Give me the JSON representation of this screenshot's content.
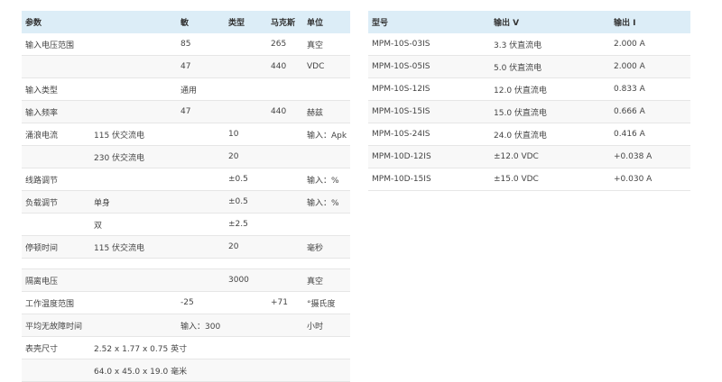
{
  "spec_table": {
    "headers": [
      "参数",
      "",
      "敏",
      "类型",
      "马克斯",
      "单位"
    ],
    "rows": [
      [
        "输入电压范围",
        "",
        "85",
        "",
        "265",
        "真空"
      ],
      [
        "",
        "",
        "47",
        "",
        "440",
        "VDC"
      ],
      [
        "输入类型",
        "",
        "通用",
        "",
        "",
        ""
      ],
      [
        "输入频率",
        "",
        "47",
        "",
        "440",
        "赫兹"
      ],
      [
        "涌浪电流",
        "115 伏交流电",
        "",
        "10",
        "",
        "输入：Apk"
      ],
      [
        "",
        "230 伏交流电",
        "",
        "20",
        "",
        ""
      ],
      [
        "线路调节",
        "",
        "",
        "±0.5",
        "",
        "输入：%"
      ],
      [
        "负载调节",
        "单身",
        "",
        "±0.5",
        "",
        "输入：%"
      ],
      [
        "",
        "双",
        "",
        "±2.5",
        "",
        ""
      ],
      [
        "停顿时间",
        "115 伏交流电",
        "",
        "20",
        "",
        "毫秒"
      ],
      [
        "",
        "",
        "",
        "",
        "",
        ""
      ],
      [
        "隔离电压",
        "",
        "",
        "3000",
        "",
        "真空"
      ],
      [
        "工作温度范围",
        "",
        "-25",
        "",
        "+71",
        "°摄氏度"
      ],
      [
        "平均无故障时间",
        "",
        "输入：300",
        "",
        "",
        "小时"
      ],
      [
        "表壳尺寸",
        "2.52 x 1.77 x 0.75 英寸",
        "",
        "",
        "",
        ""
      ],
      [
        "",
        "64.0 x 45.0 x 19.0 毫米",
        "",
        "",
        "",
        ""
      ]
    ]
  },
  "model_table": {
    "headers": [
      "型号",
      "输出 V",
      "输出 I"
    ],
    "rows": [
      [
        "MPM-10S-03IS",
        "3.3 伏直流电",
        "2.000 A"
      ],
      [
        "MPM-10S-05IS",
        "5.0 伏直流电",
        "2.000 A"
      ],
      [
        "MPM-10S-12IS",
        "12.0 伏直流电",
        "0.833 A"
      ],
      [
        "MPM-10S-15IS",
        "15.0 伏直流电",
        "0.666 A"
      ],
      [
        "MPM-10S-24IS",
        "24.0 伏直流电",
        "0.416 A"
      ],
      [
        "MPM-10D-12IS",
        "±12.0 VDC",
        "+0.038 A"
      ],
      [
        "MPM-10D-15IS",
        "±15.0 VDC",
        "+0.030 A"
      ]
    ]
  },
  "colors": {
    "header_bg": "#dcedf7",
    "stripe": "#f8f8f8"
  }
}
